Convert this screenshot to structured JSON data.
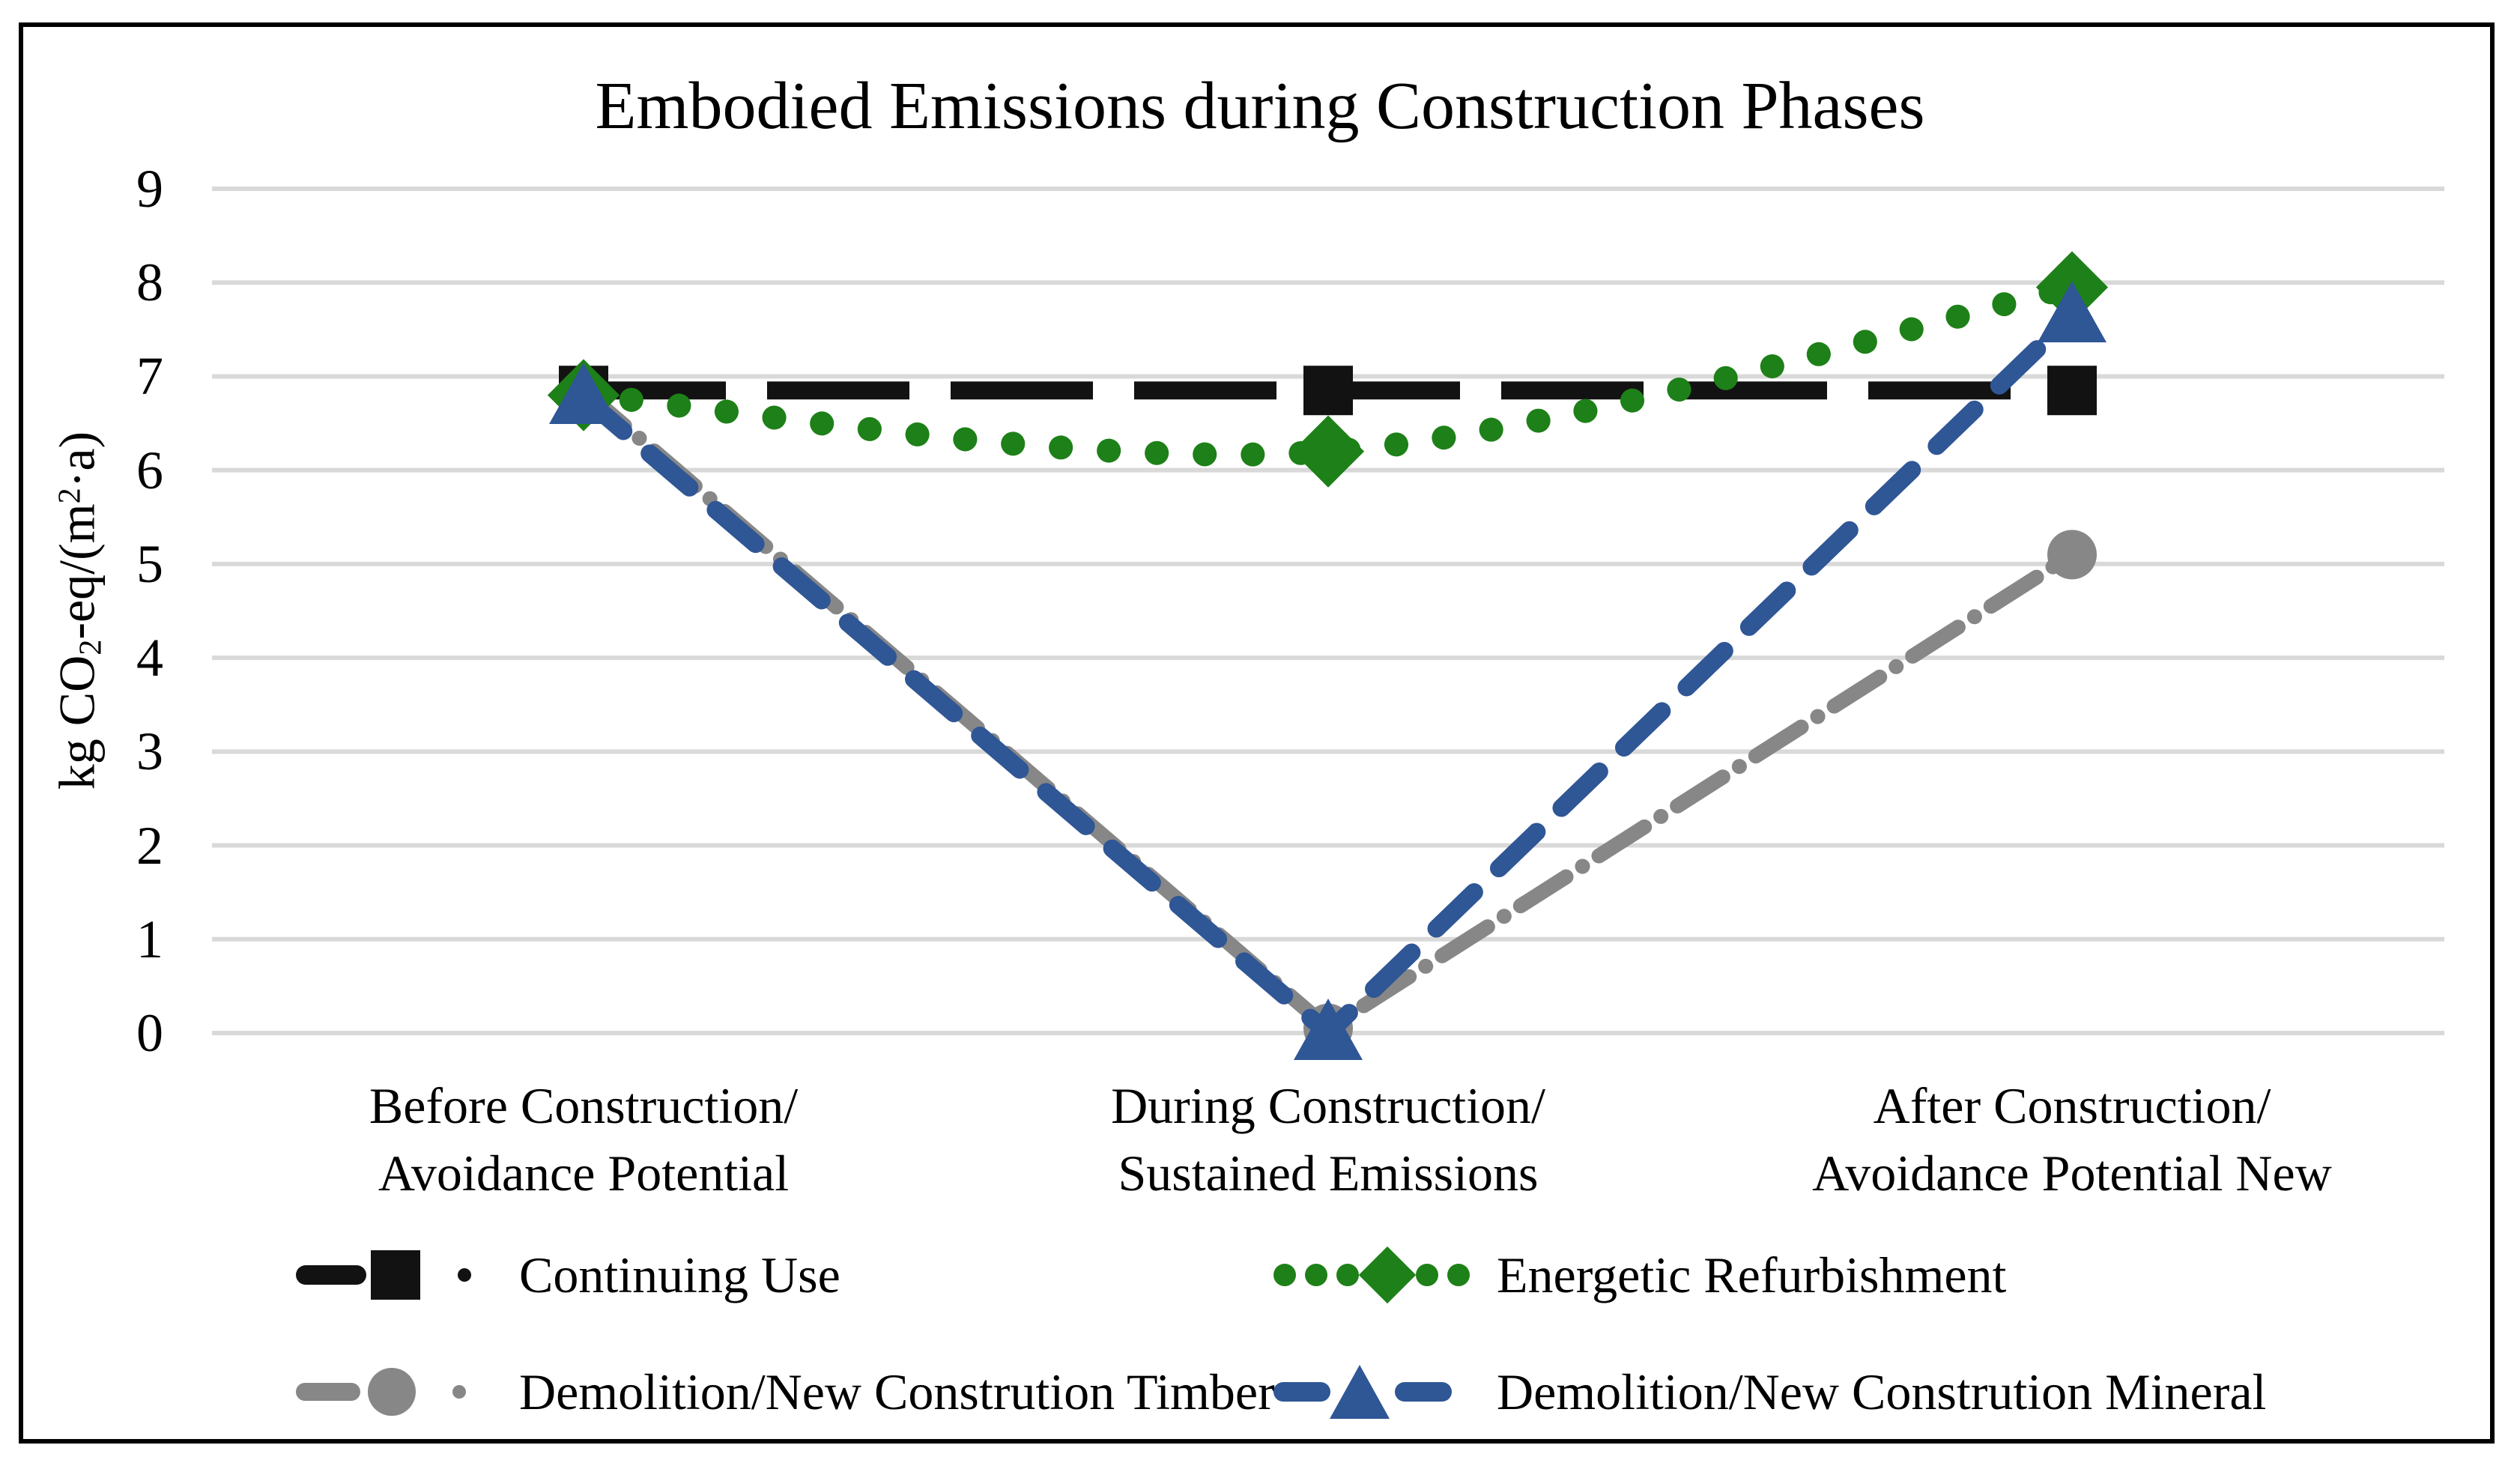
{
  "chart_data": {
    "type": "line",
    "title": "Embodied Emissions during Construction Phases",
    "xlabel": "",
    "ylabel": "kg CO2-eq/(m2·a)",
    "ylabel_segments": [
      {
        "t": "kg CO"
      },
      {
        "t": "2",
        "sub": true
      },
      {
        "t": "-eq/(m"
      },
      {
        "t": "2",
        "sup": true
      },
      {
        "t": "·a)"
      }
    ],
    "categories": [
      "Before Construction/ Avoidance Potential",
      "During Construction/ Sustained Emissions",
      "After Construction/ Avoidance Potential New"
    ],
    "categories_lines": [
      [
        "Before Construction/",
        "Avoidance Potential"
      ],
      [
        "During Construction/",
        "Sustained Emissions"
      ],
      [
        "After Construction/",
        "Avoidance Potential New"
      ]
    ],
    "series": [
      {
        "name": "Continuing Use",
        "values": [
          6.85,
          6.85,
          6.85
        ],
        "color": "#121212",
        "line_style": "long-dash",
        "marker": "square",
        "smooth": false
      },
      {
        "name": "Energetic Refurbishment",
        "values": [
          6.8,
          6.2,
          7.95
        ],
        "color": "#1e8018",
        "line_style": "dotted",
        "marker": "diamond",
        "smooth": true
      },
      {
        "name": "Demolition/New Constrution Timber",
        "values": [
          6.85,
          0.05,
          5.1
        ],
        "color": "#878787",
        "line_style": "dash-dot",
        "marker": "circle",
        "smooth": false
      },
      {
        "name": "Demolition/New Constrution Mineral",
        "values": [
          6.78,
          0.0,
          7.65
        ],
        "color": "#2f5695",
        "line_style": "dashed",
        "marker": "triangle",
        "smooth": false
      }
    ],
    "yticks": [
      0,
      1,
      2,
      3,
      4,
      5,
      6,
      7,
      8,
      9
    ],
    "ylim": [
      0,
      9
    ],
    "grid": "horizontal",
    "gridline_color": "#d9d9d9",
    "legend_position": "bottom"
  },
  "legend": {
    "items": [
      {
        "label": "Continuing Use",
        "series_index": 0
      },
      {
        "label": "Energetic Refurbishment",
        "series_index": 1
      },
      {
        "label": "Demolition/New Constrution Timber",
        "series_index": 2
      },
      {
        "label": "Demolition/New Constrution Mineral",
        "series_index": 3
      }
    ]
  }
}
